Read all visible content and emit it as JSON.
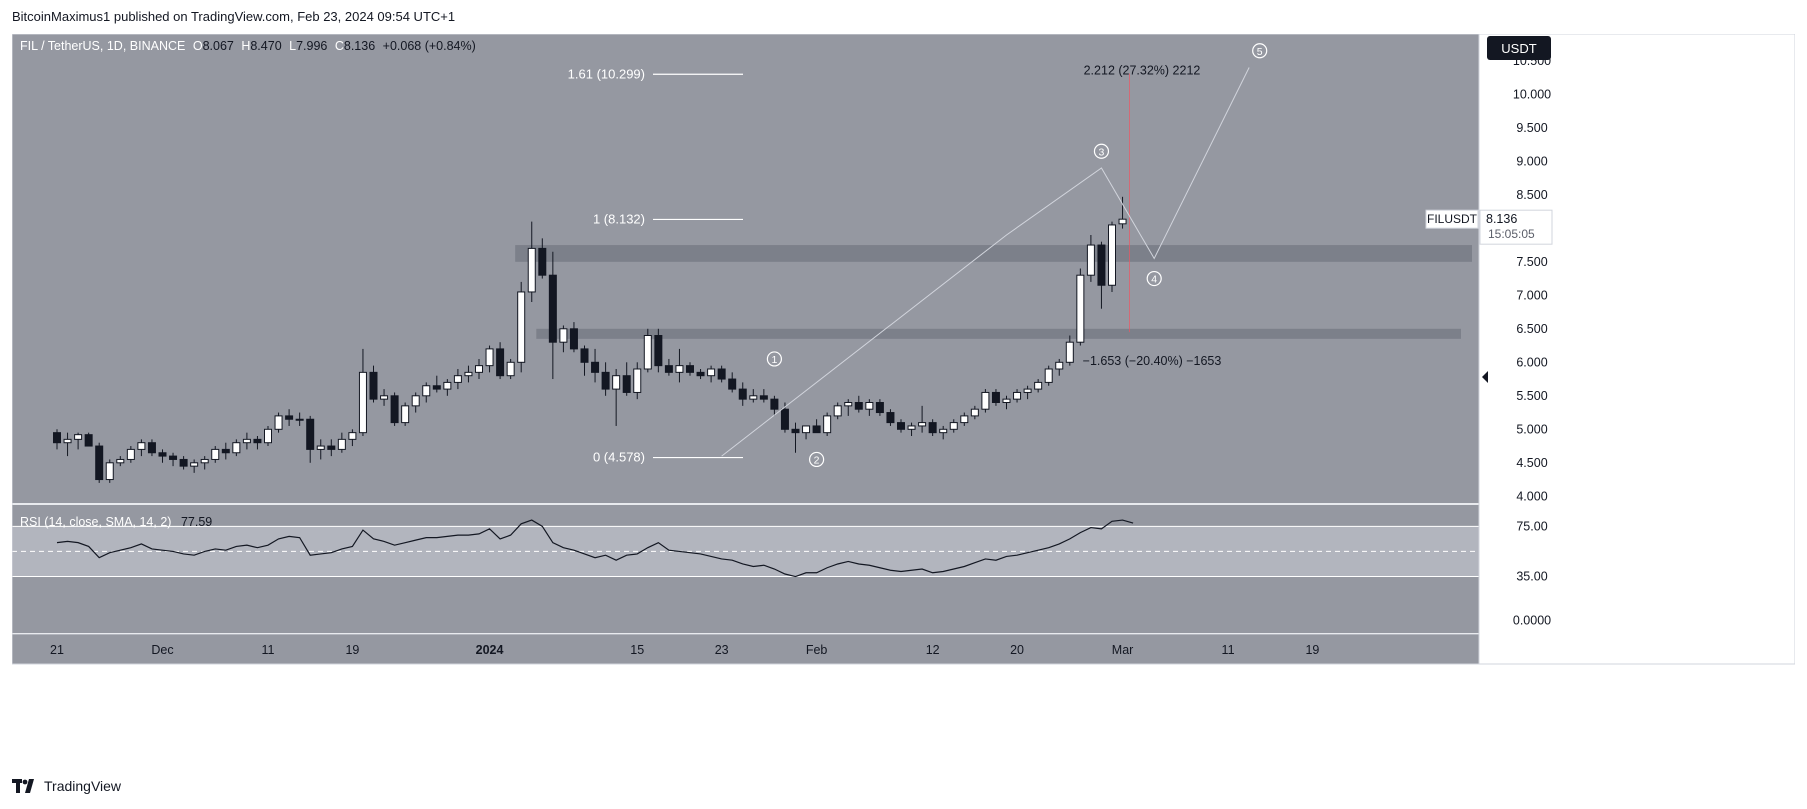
{
  "header": {
    "published": "BitcoinMaximus1 published on TradingView.com, Feb 23, 2024 09:54 UTC+1"
  },
  "footer": {
    "brand": "TradingView",
    "logo_icon": "tradingview-logo-icon"
  },
  "colors": {
    "chart_bg": "#9598a1",
    "pane_bg": "#9598a1",
    "rsi_band": "#b2b5be",
    "up_candle": "#ffffff",
    "down_candle": "#131722",
    "zone": "#787b86",
    "axis_bg": "#ffffff",
    "text": "#131722",
    "price_tag_bg": "#131722"
  },
  "chart_data": [
    {
      "type": "candlestick",
      "title": "FIL / TetherUS, 1D, BINANCE",
      "symbol": "FILUSDT",
      "currency_button": "USDT",
      "legend": {
        "open_label": "O",
        "open": "8.067",
        "high_label": "H",
        "high": "8.470",
        "low_label": "L",
        "low": "7.996",
        "close_label": "C",
        "close": "8.136",
        "change": "+0.068 (+0.84%)"
      },
      "last_price": "8.136",
      "countdown": "15:05:05",
      "ylim": [
        3.9,
        10.9
      ],
      "y_ticks": [
        "4.000",
        "4.500",
        "5.000",
        "5.500",
        "6.000",
        "6.500",
        "7.000",
        "7.500",
        "8.000",
        "8.500",
        "9.000",
        "9.500",
        "10.000",
        "10.500"
      ],
      "x_ticks": [
        {
          "label": "21",
          "day": 0
        },
        {
          "label": "Dec",
          "day": 10
        },
        {
          "label": "11",
          "day": 20
        },
        {
          "label": "19",
          "day": 28
        },
        {
          "label": "2024",
          "day": 41
        },
        {
          "label": "15",
          "day": 55
        },
        {
          "label": "23",
          "day": 63
        },
        {
          "label": "Feb",
          "day": 72
        },
        {
          "label": "12",
          "day": 83
        },
        {
          "label": "20",
          "day": 91
        },
        {
          "label": "Mar",
          "day": 101
        },
        {
          "label": "11",
          "day": 111
        },
        {
          "label": "19",
          "day": 119
        }
      ],
      "ohlc": [
        [
          4.95,
          5.0,
          4.7,
          4.8
        ],
        [
          4.8,
          4.95,
          4.6,
          4.85
        ],
        [
          4.85,
          4.95,
          4.7,
          4.92
        ],
        [
          4.92,
          4.95,
          4.75,
          4.75
        ],
        [
          4.75,
          4.8,
          4.2,
          4.25
        ],
        [
          4.25,
          4.55,
          4.2,
          4.5
        ],
        [
          4.5,
          4.6,
          4.45,
          4.55
        ],
        [
          4.55,
          4.75,
          4.5,
          4.7
        ],
        [
          4.7,
          4.85,
          4.6,
          4.8
        ],
        [
          4.8,
          4.85,
          4.6,
          4.65
        ],
        [
          4.65,
          4.7,
          4.5,
          4.6
        ],
        [
          4.6,
          4.65,
          4.45,
          4.55
        ],
        [
          4.55,
          4.6,
          4.4,
          4.45
        ],
        [
          4.45,
          4.55,
          4.35,
          4.5
        ],
        [
          4.5,
          4.6,
          4.4,
          4.55
        ],
        [
          4.55,
          4.75,
          4.5,
          4.7
        ],
        [
          4.7,
          4.8,
          4.55,
          4.65
        ],
        [
          4.65,
          4.85,
          4.6,
          4.8
        ],
        [
          4.8,
          4.95,
          4.7,
          4.85
        ],
        [
          4.85,
          4.9,
          4.7,
          4.8
        ],
        [
          4.8,
          5.05,
          4.75,
          5.0
        ],
        [
          5.0,
          5.25,
          4.95,
          5.2
        ],
        [
          5.2,
          5.3,
          5.05,
          5.15
        ],
        [
          5.15,
          5.25,
          5.05,
          5.15
        ],
        [
          5.15,
          5.2,
          4.5,
          4.7
        ],
        [
          4.7,
          4.85,
          4.55,
          4.75
        ],
        [
          4.75,
          4.85,
          4.6,
          4.7
        ],
        [
          4.7,
          4.95,
          4.65,
          4.85
        ],
        [
          4.85,
          5.0,
          4.75,
          4.95
        ],
        [
          4.95,
          6.2,
          4.9,
          5.85
        ],
        [
          5.85,
          5.95,
          5.4,
          5.45
        ],
        [
          5.45,
          5.6,
          5.35,
          5.5
        ],
        [
          5.5,
          5.55,
          5.05,
          5.1
        ],
        [
          5.1,
          5.4,
          5.05,
          5.35
        ],
        [
          5.35,
          5.55,
          5.25,
          5.5
        ],
        [
          5.5,
          5.7,
          5.4,
          5.65
        ],
        [
          5.65,
          5.8,
          5.55,
          5.6
        ],
        [
          5.6,
          5.75,
          5.5,
          5.7
        ],
        [
          5.7,
          5.9,
          5.6,
          5.8
        ],
        [
          5.8,
          5.95,
          5.7,
          5.85
        ],
        [
          5.85,
          6.05,
          5.75,
          5.95
        ],
        [
          5.95,
          6.25,
          5.85,
          6.2
        ],
        [
          6.2,
          6.3,
          5.75,
          5.8
        ],
        [
          5.8,
          6.05,
          5.75,
          6.0
        ],
        [
          6.0,
          7.2,
          5.85,
          7.05
        ],
        [
          7.05,
          8.1,
          6.9,
          7.7
        ],
        [
          7.7,
          7.85,
          7.25,
          7.3
        ],
        [
          7.3,
          7.65,
          5.75,
          6.3
        ],
        [
          6.3,
          6.55,
          6.15,
          6.5
        ],
        [
          6.5,
          6.6,
          6.15,
          6.2
        ],
        [
          6.2,
          6.25,
          5.8,
          6.0
        ],
        [
          6.0,
          6.2,
          5.7,
          5.85
        ],
        [
          5.85,
          6.0,
          5.5,
          5.6
        ],
        [
          5.6,
          5.9,
          5.05,
          5.8
        ],
        [
          5.8,
          6.0,
          5.5,
          5.55
        ],
        [
          5.55,
          6.0,
          5.45,
          5.9
        ],
        [
          5.9,
          6.5,
          5.85,
          6.4
        ],
        [
          6.4,
          6.5,
          5.85,
          5.95
        ],
        [
          5.95,
          6.05,
          5.8,
          5.85
        ],
        [
          5.85,
          6.2,
          5.7,
          5.95
        ],
        [
          5.95,
          6.0,
          5.8,
          5.85
        ],
        [
          5.85,
          5.9,
          5.75,
          5.8
        ],
        [
          5.8,
          5.95,
          5.7,
          5.9
        ],
        [
          5.9,
          5.95,
          5.7,
          5.75
        ],
        [
          5.75,
          5.85,
          5.55,
          5.6
        ],
        [
          5.6,
          5.7,
          5.35,
          5.45
        ],
        [
          5.45,
          5.6,
          5.4,
          5.5
        ],
        [
          5.5,
          5.6,
          5.4,
          5.45
        ],
        [
          5.45,
          5.5,
          5.2,
          5.3
        ],
        [
          5.3,
          5.4,
          4.95,
          5.0
        ],
        [
          5.0,
          5.1,
          4.65,
          4.95
        ],
        [
          4.95,
          5.05,
          4.85,
          5.05
        ],
        [
          5.05,
          5.15,
          4.95,
          4.95
        ],
        [
          4.95,
          5.25,
          4.9,
          5.2
        ],
        [
          5.2,
          5.4,
          5.15,
          5.35
        ],
        [
          5.35,
          5.45,
          5.2,
          5.4
        ],
        [
          5.4,
          5.5,
          5.25,
          5.3
        ],
        [
          5.3,
          5.45,
          5.2,
          5.4
        ],
        [
          5.4,
          5.45,
          5.2,
          5.25
        ],
        [
          5.25,
          5.3,
          5.05,
          5.1
        ],
        [
          5.1,
          5.15,
          4.95,
          5.0
        ],
        [
          5.0,
          5.1,
          4.9,
          5.05
        ],
        [
          5.05,
          5.35,
          4.95,
          5.1
        ],
        [
          5.1,
          5.15,
          4.9,
          4.95
        ],
        [
          4.95,
          5.05,
          4.85,
          5.0
        ],
        [
          5.0,
          5.15,
          4.95,
          5.1
        ],
        [
          5.1,
          5.25,
          5.05,
          5.2
        ],
        [
          5.2,
          5.35,
          5.15,
          5.3
        ],
        [
          5.3,
          5.6,
          5.25,
          5.55
        ],
        [
          5.55,
          5.6,
          5.35,
          5.4
        ],
        [
          5.4,
          5.5,
          5.3,
          5.45
        ],
        [
          5.45,
          5.6,
          5.4,
          5.55
        ],
        [
          5.55,
          5.65,
          5.45,
          5.6
        ],
        [
          5.6,
          5.75,
          5.55,
          5.7
        ],
        [
          5.7,
          5.95,
          5.65,
          5.9
        ],
        [
          5.9,
          6.05,
          5.8,
          6.0
        ],
        [
          6.0,
          6.4,
          5.95,
          6.3
        ],
        [
          6.3,
          7.4,
          6.25,
          7.3
        ],
        [
          7.3,
          7.9,
          7.2,
          7.75
        ],
        [
          7.75,
          7.8,
          6.8,
          7.15
        ],
        [
          7.15,
          8.1,
          7.05,
          8.05
        ],
        [
          8.067,
          8.47,
          7.996,
          8.136
        ]
      ],
      "zones": [
        {
          "name": "resistance-zone-upper",
          "from": 7.5,
          "to": 7.75,
          "start_day": 44
        },
        {
          "name": "support-zone-lower",
          "from": 6.35,
          "to": 6.5,
          "start_day": 46
        }
      ],
      "fib_levels": [
        {
          "label": "1.61 (10.299)",
          "price": 10.299
        },
        {
          "label": "1 (8.132)",
          "price": 8.132
        },
        {
          "label": "0 (4.578)",
          "price": 4.578
        }
      ],
      "measure_up": {
        "label": "2.212 (27.32%) 2212",
        "day": 101,
        "from": 8.1,
        "to": 10.31
      },
      "measure_down": {
        "label": "−1.653 (−20.40%) −1653",
        "day": 101,
        "from": 8.1,
        "to": 6.45
      },
      "wave_path": [
        {
          "day": 63,
          "price": 4.6
        },
        {
          "day": 90,
          "price": 7.9
        },
        {
          "day": 99,
          "price": 8.9
        },
        {
          "day": 104,
          "price": 7.55
        },
        {
          "day": 113,
          "price": 10.4
        }
      ],
      "wave_labels": [
        {
          "text": "1",
          "day": 68,
          "price": 6.05
        },
        {
          "text": "2",
          "day": 72,
          "price": 4.55
        },
        {
          "text": "3",
          "day": 99,
          "price": 9.15
        },
        {
          "text": "4",
          "day": 104,
          "price": 7.25
        },
        {
          "text": "5",
          "day": 114,
          "price": 10.65
        }
      ]
    },
    {
      "type": "line",
      "title": "RSI (14, close, SMA, 14, 2)",
      "last_value": "77.59",
      "ylim": [
        -10,
        92
      ],
      "y_ticks": [
        "75.00",
        "35.00",
        "0.0000"
      ],
      "band": [
        35,
        75
      ],
      "midline": 55,
      "values": [
        62,
        63,
        62,
        59,
        50,
        54,
        56,
        58,
        61,
        57,
        56,
        55,
        53,
        52,
        55,
        57,
        56,
        59,
        60,
        58,
        60,
        65,
        67,
        66,
        52,
        53,
        54,
        57,
        59,
        72,
        65,
        63,
        60,
        62,
        64,
        66,
        66,
        67,
        68,
        68,
        69,
        73,
        65,
        68,
        77,
        80,
        75,
        62,
        58,
        56,
        53,
        50,
        52,
        48,
        52,
        53,
        58,
        62,
        56,
        55,
        54,
        53,
        51,
        49,
        48,
        45,
        43,
        44,
        41,
        37,
        35,
        38,
        38,
        42,
        45,
        47,
        45,
        44,
        42,
        40,
        39,
        40,
        41,
        38,
        39,
        41,
        43,
        46,
        49,
        48,
        51,
        52,
        54,
        56,
        58,
        61,
        65,
        70,
        74,
        73,
        79,
        80,
        77.59
      ]
    }
  ]
}
